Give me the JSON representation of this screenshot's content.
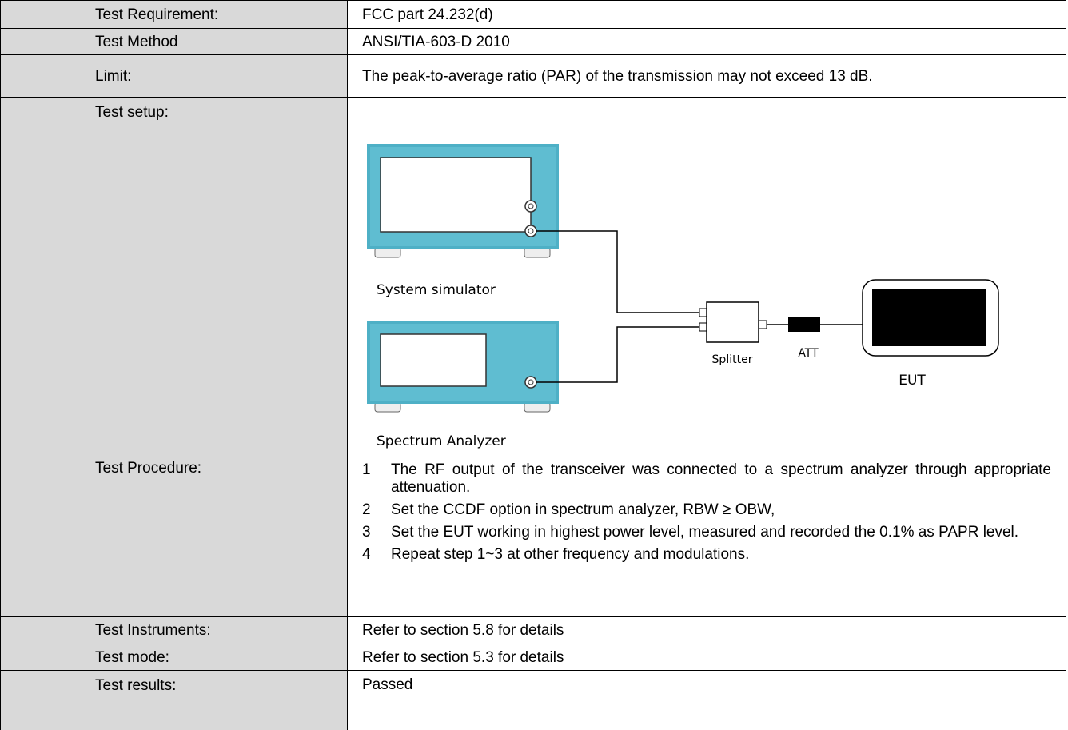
{
  "table": {
    "rows": [
      {
        "label": "Test Requirement:",
        "value": "FCC part 24.232(d)"
      },
      {
        "label": "Test Method",
        "value": "ANSI/TIA-603-D 2010"
      },
      {
        "label": "Limit:",
        "value": "The peak-to-average ratio (PAR) of the transmission may not exceed 13 dB."
      },
      {
        "label": "Test setup:",
        "diagram": {
          "simulator": "System simulator",
          "analyzer": "Spectrum Analyzer",
          "splitter": "Splitter",
          "att": "ATT",
          "eut": "EUT"
        }
      },
      {
        "label": "Test Procedure:",
        "steps": [
          {
            "number": "1",
            "text": "The RF output of the transceiver was connected to a spectrum analyzer through appropriate attenuation."
          },
          {
            "number": "2",
            "text": "Set the CCDF option in spectrum analyzer, RBW ≥ OBW,"
          },
          {
            "number": "3",
            "text": "Set the EUT working in highest power level, measured and recorded the 0.1% as PAPR level."
          },
          {
            "number": "4",
            "text": "Repeat step 1~3 at other frequency and modulations."
          }
        ]
      },
      {
        "label": "Test Instruments:",
        "value": "Refer to section 5.8 for details"
      },
      {
        "label": "Test mode:",
        "value": "Refer to section 5.3 for details"
      },
      {
        "label": "Test results:",
        "value": "Passed"
      }
    ]
  }
}
